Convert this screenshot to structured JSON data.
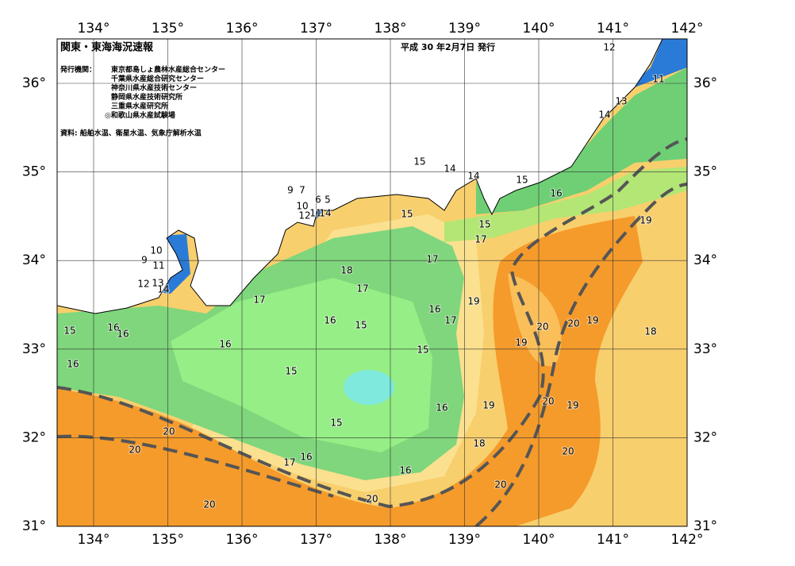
{
  "map": {
    "title": "関東・東海海況速報",
    "date": "平成 30 年2月7日 発行",
    "issuer_label": "発行機関：",
    "issuers": [
      "東京都島しょ農林水産総合センター",
      "千葉県水産総合研究センター",
      "神奈川県水産技術センター",
      "静岡県水産技術研究所",
      "三重県水産研究所",
      "◎和歌山県水産試験場"
    ],
    "source": "資料: 船舶水温、衛星水温、気象庁解析水温",
    "lon_labels": [
      "134°",
      "135°",
      "136°",
      "137°",
      "138°",
      "139°",
      "140°",
      "141°",
      "142°"
    ],
    "lat_labels": [
      "31°",
      "32°",
      "33°",
      "34°",
      "35°",
      "36°"
    ],
    "contour_labels": [
      "12",
      "11",
      "13",
      "14",
      "15",
      "14",
      "14",
      "15",
      "16",
      "19",
      "15",
      "15",
      "17",
      "17",
      "9",
      "7",
      "6",
      "5",
      "10",
      "12",
      "11",
      "14",
      "10",
      "9",
      "11",
      "12",
      "13",
      "14",
      "18",
      "17",
      "17",
      "19",
      "16",
      "17",
      "16",
      "15",
      "20",
      "20",
      "19",
      "18",
      "15",
      "16",
      "16",
      "16",
      "19",
      "15",
      "16",
      "15",
      "19",
      "20",
      "19",
      "16",
      "15",
      "20",
      "18",
      "20",
      "20",
      "16",
      "17",
      "16",
      "20",
      "20",
      "20"
    ]
  }
}
